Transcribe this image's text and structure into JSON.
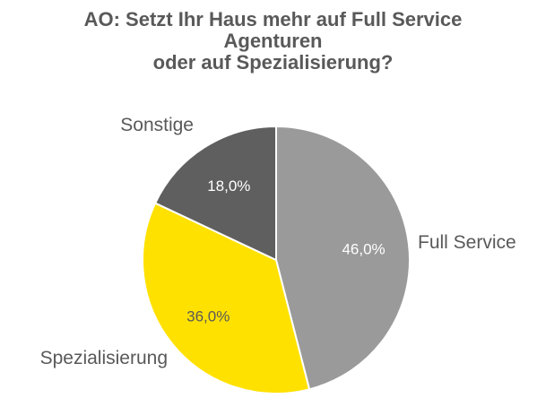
{
  "chart_data": {
    "type": "pie",
    "title_lines": [
      "AO: Setzt Ihr Haus mehr auf Full Service",
      "Agenturen",
      "oder auf Spezialisierung?"
    ],
    "slices": [
      {
        "category": "Full Service",
        "value": 46.0,
        "label": "46,0%",
        "color": "#9a9a9a",
        "label_color": "#ffffff"
      },
      {
        "category": "Spezialisierung",
        "value": 36.0,
        "label": "36,0%",
        "color": "#ffe100",
        "label_color": "#595959"
      },
      {
        "category": "Sonstige",
        "value": 18.0,
        "label": "18,0%",
        "color": "#5f5f5f",
        "label_color": "#ffffff"
      }
    ],
    "legend": "none"
  }
}
